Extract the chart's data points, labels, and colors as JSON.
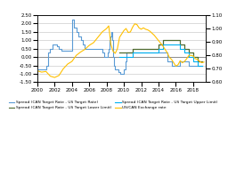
{
  "title": "",
  "left_ylim": [
    -1.5,
    2.5
  ],
  "right_ylim": [
    0.6,
    1.1
  ],
  "left_yticks": [
    -1.5,
    -1.0,
    -0.5,
    0.0,
    0.5,
    1.0,
    1.5,
    2.0,
    2.5
  ],
  "right_yticks": [
    0.6,
    0.65,
    0.7,
    0.75,
    0.8,
    0.85,
    0.9,
    0.95,
    1.0,
    1.05,
    1.1
  ],
  "xlim": [
    2000,
    2019.5
  ],
  "xticks": [
    2000,
    2002,
    2004,
    2006,
    2008,
    2010,
    2012,
    2014,
    2016,
    2018
  ],
  "colors": {
    "blue": "#5B9BD5",
    "dark_green": "#4E6B30",
    "cyan": "#00B0F0",
    "orange": "#FFC000",
    "zero_line": "#808080",
    "grid": "#C0C0C0",
    "background": "#FFFFFF"
  },
  "legend": [
    "Spread (CAN Target Rate - US Target Rate)",
    "Spread (CAN Target Rate - US Target Lower Limit)",
    "Spread (CAN Target Rate - US Target Upper Limit)",
    "US/CAN Exchange rate"
  ],
  "spread_blue": {
    "years": [
      2000.0,
      2000.25,
      2000.5,
      2000.75,
      2001.0,
      2001.25,
      2001.5,
      2001.75,
      2002.0,
      2002.25,
      2002.5,
      2002.75,
      2003.0,
      2003.25,
      2003.5,
      2003.75,
      2004.0,
      2004.25,
      2004.5,
      2004.75,
      2005.0,
      2005.25,
      2005.5,
      2005.75,
      2006.0,
      2006.25,
      2006.5,
      2006.75,
      2007.0,
      2007.25,
      2007.5,
      2007.75,
      2008.0,
      2008.1,
      2008.2,
      2008.3,
      2008.4,
      2008.5,
      2008.6,
      2008.7,
      2008.8,
      2008.9,
      2009.0,
      2009.1,
      2009.2,
      2009.3,
      2009.4,
      2009.5,
      2009.6,
      2009.7,
      2009.8,
      2009.9,
      2010.0,
      2010.1,
      2010.2,
      2010.3,
      2015.0,
      2015.5,
      2016.0,
      2016.5,
      2017.0,
      2017.5,
      2018.0,
      2018.5,
      2019.0
    ],
    "values": [
      -0.75,
      -0.75,
      -0.75,
      -0.75,
      -0.5,
      0.25,
      0.5,
      0.75,
      0.75,
      0.625,
      0.5,
      0.375,
      0.375,
      0.375,
      0.375,
      0.375,
      2.25,
      1.75,
      1.5,
      1.25,
      1.0,
      0.75,
      0.5,
      0.5,
      0.5,
      0.5,
      0.5,
      0.5,
      0.5,
      0.5,
      0.25,
      0.0,
      0.0,
      0.25,
      0.5,
      1.0,
      1.25,
      1.5,
      1.25,
      1.0,
      0.0,
      -0.5,
      -0.75,
      -0.75,
      -0.75,
      -0.75,
      -0.875,
      -0.875,
      -1.0,
      -1.0,
      -1.0,
      -1.0,
      -0.75,
      -0.75,
      -0.25,
      0.25,
      -0.25,
      -0.5,
      -0.5,
      -0.25,
      -0.25,
      -0.5,
      -0.5,
      -0.5,
      -0.5
    ]
  },
  "spread_green": {
    "years": [
      2009.5,
      2009.7,
      2010.0,
      2010.25,
      2010.5,
      2010.75,
      2011.0,
      2012.0,
      2013.0,
      2014.0,
      2014.5,
      2014.75,
      2015.0,
      2015.25,
      2015.5,
      2015.75,
      2016.0,
      2016.5,
      2017.0,
      2017.5,
      2018.0,
      2018.5,
      2019.0
    ],
    "values": [
      0.25,
      0.25,
      0.25,
      0.25,
      0.25,
      0.25,
      0.5,
      0.5,
      0.5,
      0.75,
      1.0,
      1.0,
      1.0,
      1.0,
      1.0,
      1.0,
      1.0,
      0.75,
      0.5,
      0.25,
      0.0,
      -0.25,
      -0.25
    ]
  },
  "spread_cyan": {
    "years": [
      2009.5,
      2009.7,
      2010.0,
      2010.25,
      2010.5,
      2010.75,
      2011.0,
      2012.0,
      2013.0,
      2014.0,
      2014.5,
      2014.75,
      2015.0,
      2015.25,
      2015.5,
      2015.75,
      2016.0,
      2016.5,
      2017.0,
      2017.5,
      2018.0,
      2018.5,
      2019.0
    ],
    "values": [
      0.0,
      0.0,
      0.0,
      0.0,
      0.0,
      0.0,
      0.25,
      0.25,
      0.25,
      0.5,
      0.75,
      0.75,
      0.75,
      0.75,
      0.75,
      0.75,
      0.75,
      0.5,
      0.25,
      0.0,
      -0.25,
      -0.5,
      -0.5
    ]
  },
  "exchange_rate": {
    "years": [
      2000,
      2000.5,
      2001,
      2001.5,
      2002,
      2002.5,
      2003,
      2003.5,
      2004,
      2004.5,
      2005,
      2005.5,
      2006,
      2006.5,
      2007,
      2007.5,
      2008,
      2008.25,
      2008.5,
      2008.75,
      2009,
      2009.25,
      2009.5,
      2009.75,
      2010,
      2010.25,
      2010.5,
      2010.75,
      2011,
      2011.25,
      2011.5,
      2011.75,
      2012,
      2012.25,
      2012.5,
      2012.75,
      2013,
      2013.5,
      2014,
      2014.5,
      2015,
      2015.25,
      2015.5,
      2015.75,
      2016,
      2016.25,
      2016.5,
      2016.75,
      2017,
      2017.25,
      2017.5,
      2017.75,
      2018,
      2018.25,
      2018.5,
      2018.75,
      2019,
      2019.25
    ],
    "values": [
      0.685,
      0.675,
      0.68,
      0.645,
      0.635,
      0.65,
      0.7,
      0.735,
      0.755,
      0.8,
      0.825,
      0.845,
      0.875,
      0.895,
      0.935,
      0.975,
      1.0,
      1.02,
      0.88,
      0.83,
      0.815,
      0.85,
      0.935,
      0.96,
      0.985,
      1.0,
      0.97,
      0.975,
      1.01,
      1.035,
      1.03,
      1.005,
      0.995,
      1.005,
      0.995,
      0.99,
      0.98,
      0.95,
      0.91,
      0.87,
      0.82,
      0.785,
      0.77,
      0.745,
      0.72,
      0.73,
      0.76,
      0.745,
      0.755,
      0.775,
      0.8,
      0.8,
      0.795,
      0.775,
      0.77,
      0.755,
      0.745,
      0.75
    ]
  }
}
